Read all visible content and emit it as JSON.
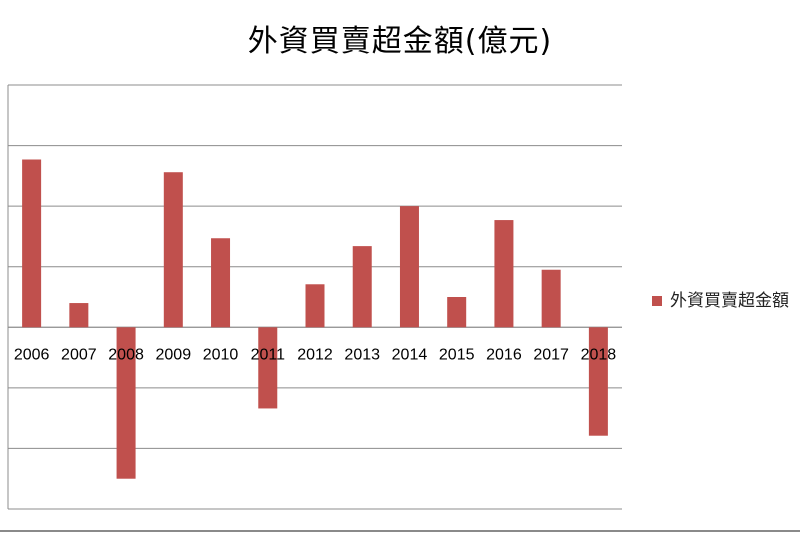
{
  "chart_data": {
    "type": "bar",
    "title": "外資買賣超金額(億元)",
    "categories": [
      "2006",
      "2007",
      "2008",
      "2009",
      "2010",
      "2011",
      "2012",
      "2013",
      "2014",
      "2015",
      "2016",
      "2017",
      "2018"
    ],
    "series": [
      {
        "name": "外資買賣超金額",
        "color": "#c0504d",
        "values": [
          2.77,
          0.4,
          -2.5,
          2.56,
          1.47,
          -1.34,
          0.71,
          1.34,
          2.0,
          0.5,
          1.77,
          0.95,
          -1.79
        ]
      }
    ],
    "ylim": [
      -3,
      4
    ],
    "grid": true,
    "legend": "right"
  }
}
